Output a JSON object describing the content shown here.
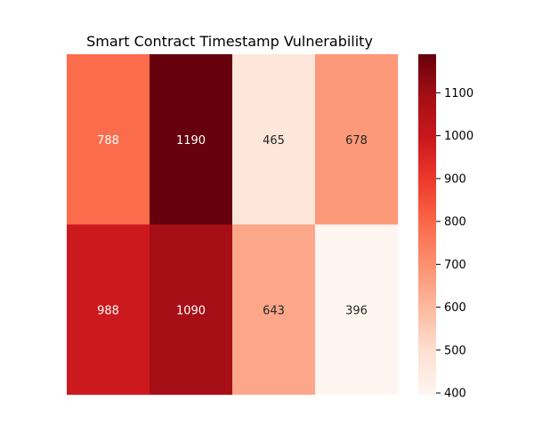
{
  "chart_data": {
    "type": "heatmap",
    "title": "Smart Contract Timestamp Vulnerability",
    "xlabel": "",
    "ylabel": "",
    "rows": [
      [
        788,
        1190,
        465,
        678
      ],
      [
        988,
        1090,
        643,
        396
      ]
    ],
    "colormap": "Reds",
    "colorbar": {
      "vmin": 396,
      "vmax": 1190,
      "ticks": [
        400,
        500,
        600,
        700,
        800,
        900,
        1000,
        1100
      ]
    },
    "annotate": true,
    "show_axes": false
  }
}
